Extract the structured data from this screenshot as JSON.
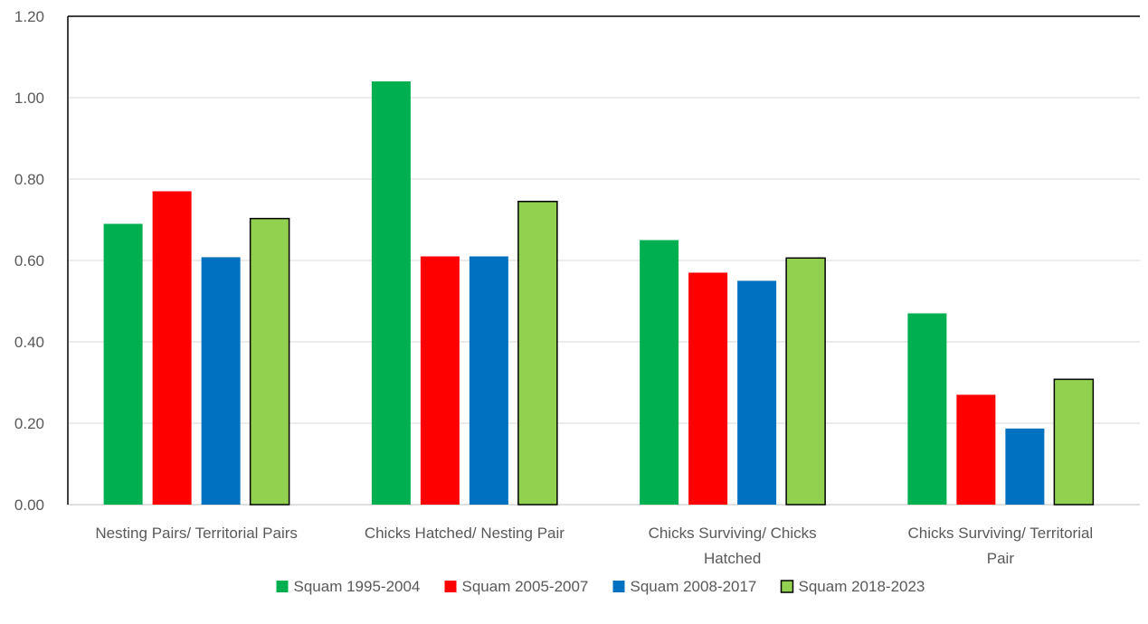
{
  "chart_data": {
    "type": "bar",
    "title": "",
    "xlabel": "",
    "ylabel": "",
    "ylim": [
      0,
      1.2
    ],
    "yticks": [
      "0.00",
      "0.20",
      "0.40",
      "0.60",
      "0.80",
      "1.00",
      "1.20"
    ],
    "grid": true,
    "legend_position": "bottom",
    "categories": [
      [
        "Nesting Pairs/ Territorial Pairs"
      ],
      [
        "Chicks Hatched/ Nesting Pair"
      ],
      [
        "Chicks Surviving/ Chicks",
        "Hatched"
      ],
      [
        "Chicks Surviving/ Territorial",
        "Pair"
      ]
    ],
    "series": [
      {
        "name": "Squam 1995-2004",
        "color": "#00b050",
        "outlined": false,
        "values": [
          0.69,
          1.04,
          0.65,
          0.47
        ]
      },
      {
        "name": "Squam 2005-2007",
        "color": "#ff0000",
        "outlined": false,
        "values": [
          0.77,
          0.61,
          0.57,
          0.27
        ]
      },
      {
        "name": "Squam 2008-2017",
        "color": "#0070c0",
        "outlined": false,
        "values": [
          0.608,
          0.61,
          0.55,
          0.187
        ]
      },
      {
        "name": "Squam 2018-2023",
        "color": "#92d050",
        "outlined": true,
        "values": [
          0.703,
          0.745,
          0.606,
          0.308
        ]
      }
    ]
  }
}
